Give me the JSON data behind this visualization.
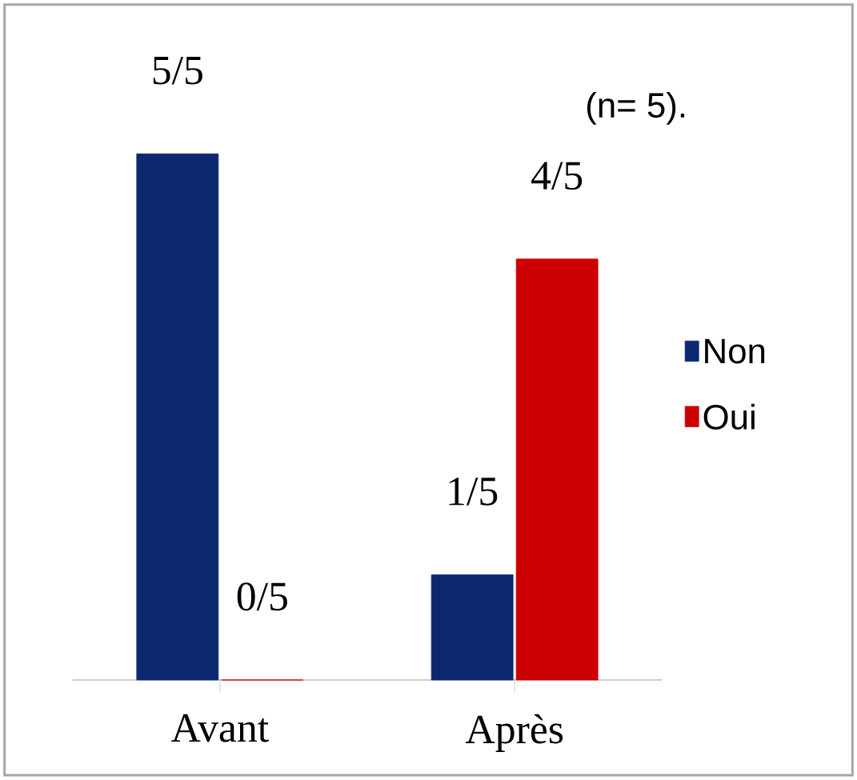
{
  "chart_data": {
    "type": "bar",
    "categories": [
      "Avant",
      "Après"
    ],
    "series": [
      {
        "name": "Non",
        "color": "#0b2870",
        "values": [
          1,
          0.2
        ],
        "value_labels": [
          "5/5",
          "1/5"
        ]
      },
      {
        "name": "Oui",
        "color": "#cc0000",
        "values": [
          0,
          0.8
        ],
        "value_labels": [
          "0/5",
          "4/5"
        ]
      }
    ],
    "annotations": [
      "(n= 5)."
    ],
    "legend": "right"
  }
}
